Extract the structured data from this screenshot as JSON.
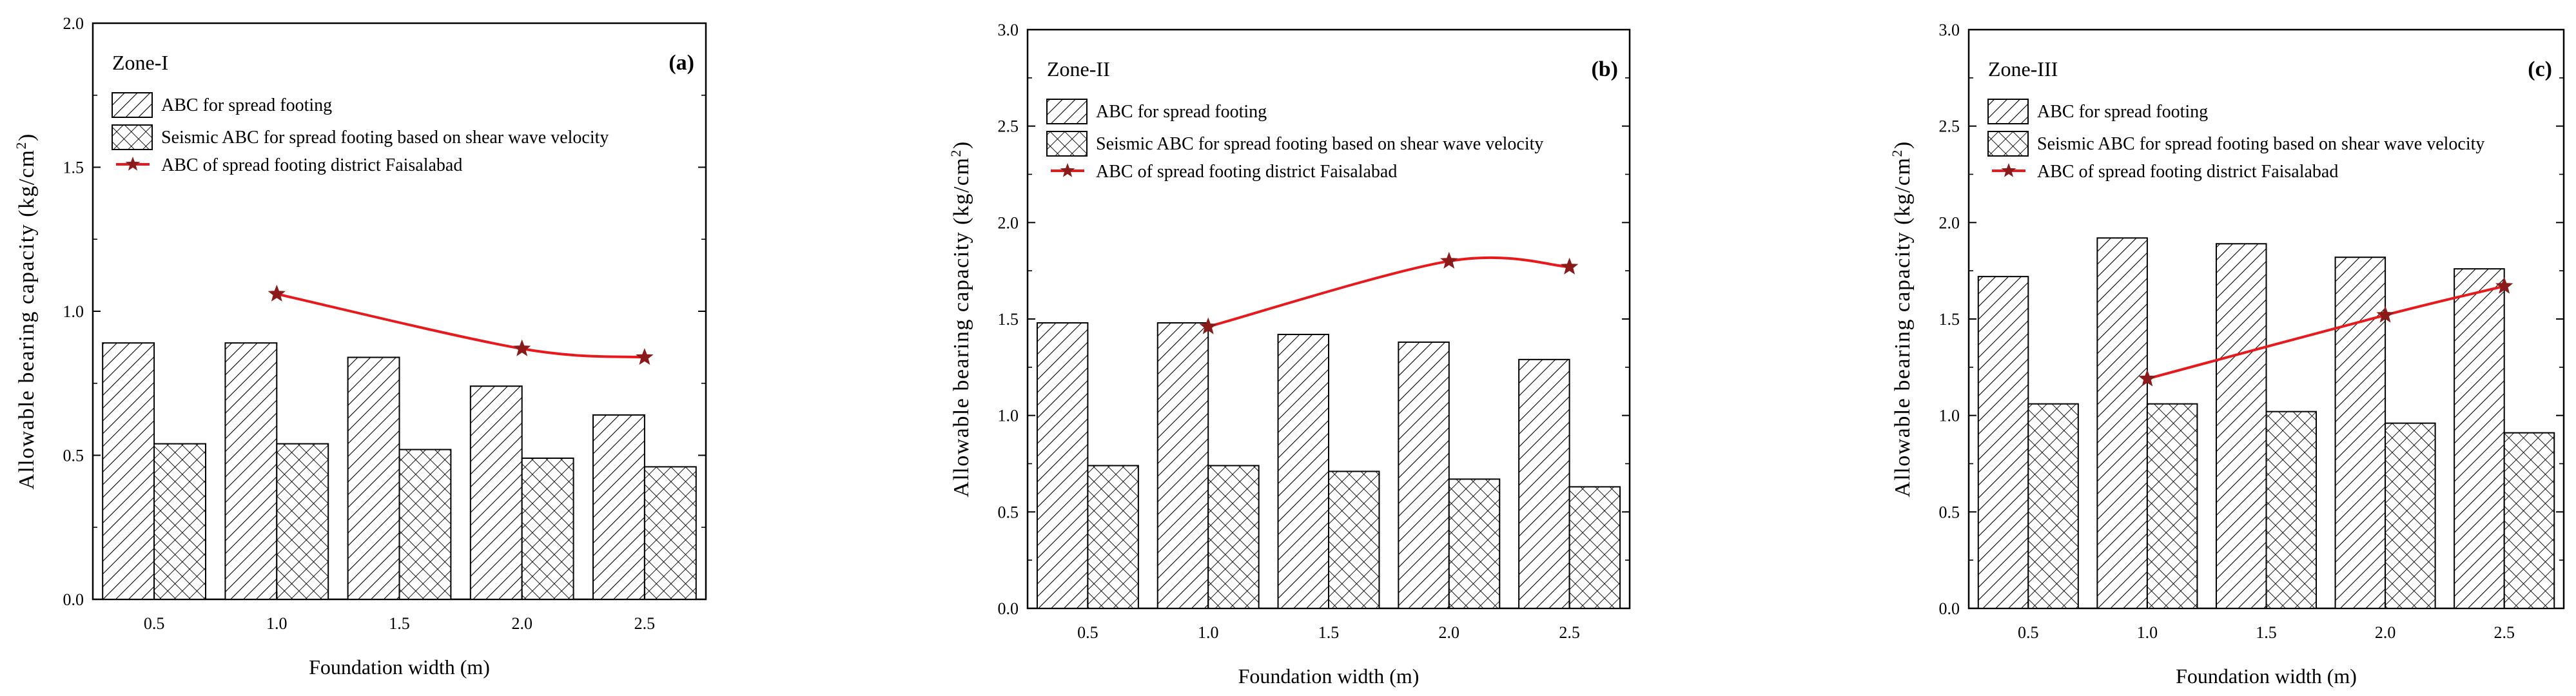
{
  "colors": {
    "line": "#e8191c",
    "star": "#8b1a1a",
    "axis": "#000000"
  },
  "chart_data": [
    {
      "type": "bar",
      "title": "Zone-I",
      "panel_label": "(a)",
      "xlabel": "Foundation width (m)",
      "ylabel_main": "Allowable bearing capacity (kg/cm",
      "ylabel_sup": "2",
      "ylabel_end": ")",
      "categories": [
        "0.5",
        "1.0",
        "1.5",
        "2.0",
        "2.5"
      ],
      "ylim": [
        0,
        2.0
      ],
      "yticks": [
        "0.0",
        "0.5",
        "1.0",
        "1.5",
        "2.0"
      ],
      "series": [
        {
          "name": "ABC for spread footing",
          "values": [
            0.89,
            0.89,
            0.84,
            0.74,
            0.64
          ]
        },
        {
          "name": "Seismic ABC for spread footing based on shear wave velocity",
          "values": [
            0.54,
            0.54,
            0.52,
            0.49,
            0.46
          ]
        }
      ],
      "line_series": {
        "name": "ABC of spread footing district Faisalabad",
        "x_index": [
          1,
          3,
          4
        ],
        "values": [
          1.06,
          0.87,
          0.84
        ]
      }
    },
    {
      "type": "bar",
      "title": "Zone-II",
      "panel_label": "(b)",
      "xlabel": "Foundation width (m)",
      "ylabel_main": "Allowable bearing capacity (kg/cm",
      "ylabel_sup": "2",
      "ylabel_end": ")",
      "categories": [
        "0.5",
        "1.0",
        "1.5",
        "2.0",
        "2.5"
      ],
      "ylim": [
        0,
        3.0
      ],
      "yticks": [
        "0.0",
        "0.5",
        "1.0",
        "1.5",
        "2.0",
        "2.5",
        "3.0"
      ],
      "series": [
        {
          "name": "ABC for spread footing",
          "values": [
            1.48,
            1.48,
            1.42,
            1.38,
            1.29
          ]
        },
        {
          "name": "Seismic ABC for spread footing based on shear wave velocity",
          "values": [
            0.74,
            0.74,
            0.71,
            0.67,
            0.63
          ]
        }
      ],
      "line_series": {
        "name": "ABC of spread footing district Faisalabad",
        "x_index": [
          1,
          3,
          4
        ],
        "values": [
          1.46,
          1.8,
          1.77
        ]
      }
    },
    {
      "type": "bar",
      "title": "Zone-III",
      "panel_label": "(c)",
      "xlabel": "Foundation width (m)",
      "ylabel_main": "Allowable bearing capacity (kg/cm",
      "ylabel_sup": "2",
      "ylabel_end": ")",
      "categories": [
        "0.5",
        "1.0",
        "1.5",
        "2.0",
        "2.5"
      ],
      "ylim": [
        0,
        3.0
      ],
      "yticks": [
        "0.0",
        "0.5",
        "1.0",
        "1.5",
        "2.0",
        "2.5",
        "3.0"
      ],
      "series": [
        {
          "name": "ABC for spread footing",
          "values": [
            1.72,
            1.92,
            1.89,
            1.82,
            1.76
          ]
        },
        {
          "name": "Seismic ABC for spread footing based on shear wave velocity",
          "values": [
            1.06,
            1.06,
            1.02,
            0.96,
            0.91
          ]
        }
      ],
      "line_series": {
        "name": "ABC of spread footing district Faisalabad",
        "x_index": [
          1,
          3,
          4
        ],
        "values": [
          1.19,
          1.52,
          1.67
        ]
      }
    }
  ]
}
